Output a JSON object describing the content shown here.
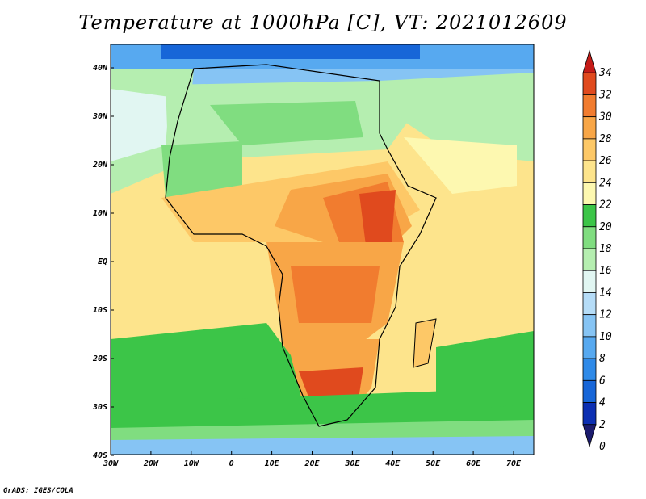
{
  "title": "Temperature at 1000hPa [C], VT: 2021012609",
  "credit": "GrADS: IGES/COLA",
  "axes": {
    "lon_labels": [
      "30W",
      "20W",
      "10W",
      "0",
      "10E",
      "20E",
      "30E",
      "40E",
      "50E",
      "60E",
      "70E"
    ],
    "lat_labels": [
      "40N",
      "30N",
      "20N",
      "10N",
      "EQ",
      "10S",
      "20S",
      "30S",
      "40S"
    ]
  },
  "colorbar": {
    "levels": [
      "0",
      "2",
      "4",
      "6",
      "8",
      "10",
      "12",
      "14",
      "16",
      "18",
      "20",
      "22",
      "24",
      "26",
      "28",
      "30",
      "32",
      "34"
    ],
    "colors": [
      "#1c1c6e",
      "#0c2fb2",
      "#1766d8",
      "#2f8ae8",
      "#57a9f0",
      "#86c4f4",
      "#b5dcf7",
      "#e1f6f2",
      "#b5eeb0",
      "#80dd80",
      "#3cc548",
      "#fdf8b0",
      "#fde48c",
      "#fdc867",
      "#f8a647",
      "#f17c2f",
      "#e04a1e",
      "#c41c18"
    ]
  }
}
